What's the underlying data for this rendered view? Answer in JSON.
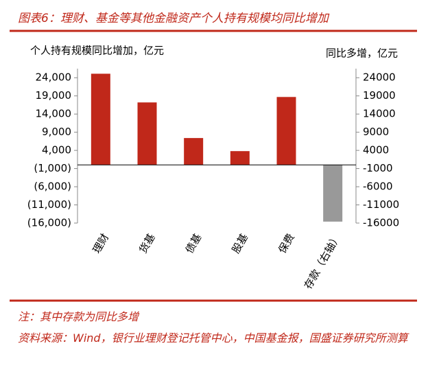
{
  "chart_data": {
    "type": "bar",
    "title": "图表6：理财、基金等其他金融资产个人持有规模均同比增加",
    "ylabel": "个人持有规模同比增加，亿元",
    "y2label": "同比多增，亿元",
    "categories": [
      "理财",
      "货基",
      "债基",
      "股基",
      "保费",
      "存款（右轴）"
    ],
    "series": [
      {
        "color": "#c0281a",
        "values": [
          25100,
          17200,
          7400,
          3800,
          18700,
          null
        ]
      },
      {
        "color": "#999999",
        "axis": "y2",
        "values": [
          null,
          null,
          null,
          null,
          null,
          -15600
        ]
      }
    ],
    "ylim": [
      -16000,
      26500
    ],
    "yticks": [
      {
        "value": -16000,
        "label": "(16,000)"
      },
      {
        "value": -11000,
        "label": "(11,000)"
      },
      {
        "value": -6000,
        "label": "(6,000)"
      },
      {
        "value": -1000,
        "label": "(1,000)"
      },
      {
        "value": 4000,
        "label": "4,000"
      },
      {
        "value": 9000,
        "label": "9,000"
      },
      {
        "value": 14000,
        "label": "14,000"
      },
      {
        "value": 19000,
        "label": "19,000"
      },
      {
        "value": 24000,
        "label": "24,000"
      }
    ],
    "y2lim": [
      -16000,
      26500
    ],
    "y2ticks": [
      -16000,
      -11000,
      -6000,
      -1000,
      4000,
      9000,
      14000,
      19000,
      24000
    ]
  },
  "notes": [
    "注：其中存款为同比多增",
    "资料来源：Wind，银行业理财登记托管中心，中国基金报，国盛证券研究所测算"
  ]
}
